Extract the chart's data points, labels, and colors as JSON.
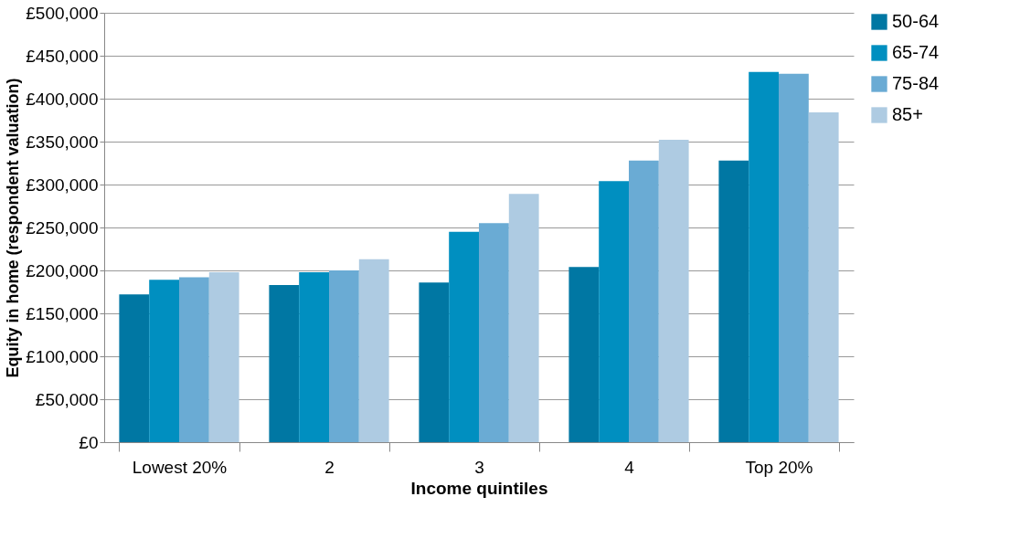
{
  "chart_data": {
    "type": "bar",
    "xlabel": "Income quintiles",
    "ylabel": "Equity in home (respondent valuation)",
    "categories": [
      "Lowest 20%",
      "2",
      "3",
      "4",
      "Top 20%"
    ],
    "series": [
      {
        "name": "50-64",
        "color": "#0077a3",
        "values": [
          172000,
          183000,
          186000,
          204000,
          328000
        ]
      },
      {
        "name": "65-74",
        "color": "#008fc0",
        "values": [
          189000,
          198000,
          245000,
          304000,
          431000
        ]
      },
      {
        "name": "75-84",
        "color": "#6aabd4",
        "values": [
          192000,
          200000,
          255000,
          328000,
          429000
        ]
      },
      {
        "name": "85+",
        "color": "#aecbe2",
        "values": [
          198000,
          213000,
          289000,
          352000,
          384000
        ]
      }
    ],
    "ylim": [
      0,
      500000
    ],
    "yticks": [
      {
        "value": 0,
        "label": "£0"
      },
      {
        "value": 50000,
        "label": "£50,000"
      },
      {
        "value": 100000,
        "label": "£100,000"
      },
      {
        "value": 150000,
        "label": "£150,000"
      },
      {
        "value": 200000,
        "label": "£200,000"
      },
      {
        "value": 250000,
        "label": "£250,000"
      },
      {
        "value": 300000,
        "label": "£300,000"
      },
      {
        "value": 350000,
        "label": "£350,000"
      },
      {
        "value": 400000,
        "label": "£400,000"
      },
      {
        "value": 450000,
        "label": "£450,000"
      },
      {
        "value": 500000,
        "label": "£500,000"
      }
    ],
    "grid": "y",
    "legend": "right"
  }
}
